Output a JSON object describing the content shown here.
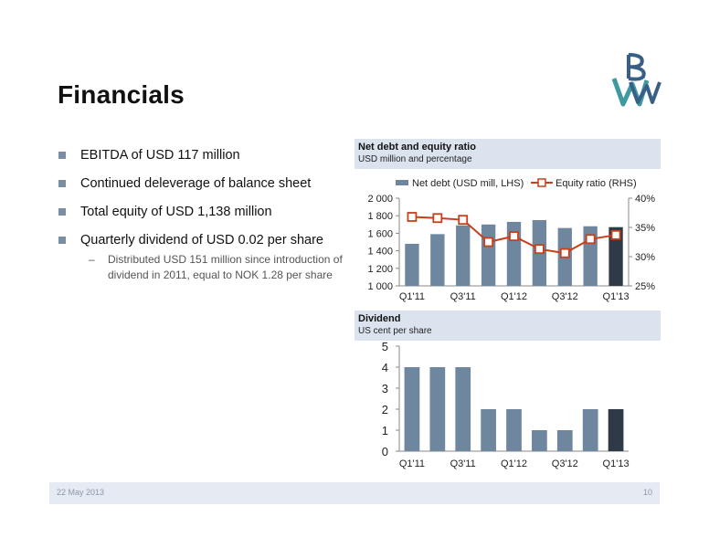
{
  "slide": {
    "title": "Financials",
    "footer_date": "22 May 2013",
    "page_number": "10"
  },
  "bullets": [
    {
      "text": "EBITDA of USD 117 million"
    },
    {
      "text": "Continued deleverage of balance sheet"
    },
    {
      "text": "Total equity of USD 1,138 million"
    },
    {
      "text": "Quarterly dividend of USD 0.02 per share"
    }
  ],
  "subbullet": {
    "dash": "–",
    "text": "Distributed USD 151 million since introduction of dividend in 2011, equal to NOK 1.28 per share"
  },
  "colors": {
    "bar": "#6f879e",
    "highlight_bar": "#2e3a48",
    "line": "#c8401a",
    "panel_bg": "#dbe3ee",
    "logo_blue": "#3a5f86",
    "logo_teal": "#3f9aa0"
  },
  "chart_data": [
    {
      "type": "bar",
      "title": "Net debt and equity ratio",
      "subtitle": "USD million and percentage",
      "categories": [
        "Q1'11",
        "Q2'11",
        "Q3'11",
        "Q4'11",
        "Q1'12",
        "Q2'12",
        "Q3'12",
        "Q4'12",
        "Q1'13"
      ],
      "x_tick_labels": [
        "Q1'11",
        "Q3'11",
        "Q1'12",
        "Q3'12",
        "Q1'13"
      ],
      "series": [
        {
          "name": "Net debt (USD mill, LHS)",
          "type": "bar",
          "axis": "left",
          "values": [
            1480,
            1590,
            1690,
            1700,
            1730,
            1750,
            1660,
            1680,
            1670
          ]
        },
        {
          "name": "Equity ratio (RHS)",
          "type": "line",
          "axis": "right",
          "values": [
            36.8,
            36.6,
            36.3,
            32.5,
            33.5,
            31.3,
            30.6,
            33.0,
            33.7
          ]
        }
      ],
      "y_left": {
        "min": 1000,
        "max": 2000,
        "ticks": [
          1000,
          1200,
          1400,
          1600,
          1800,
          2000
        ],
        "tick_labels": [
          "1 000",
          "1 200",
          "1 400",
          "1 600",
          "1 800",
          "2 000"
        ]
      },
      "y_right": {
        "min": 25,
        "max": 40,
        "ticks": [
          25,
          30,
          35,
          40
        ],
        "tick_labels": [
          "25%",
          "30%",
          "35%",
          "40%"
        ]
      },
      "highlight_last": true,
      "legend_position": "top",
      "grid": false
    },
    {
      "type": "bar",
      "title": "Dividend",
      "subtitle": "US cent per share",
      "categories": [
        "Q1'11",
        "Q2'11",
        "Q3'11",
        "Q4'11",
        "Q1'12",
        "Q2'12",
        "Q3'12",
        "Q4'12",
        "Q1'13"
      ],
      "x_tick_labels": [
        "Q1'11",
        "Q3'11",
        "Q1'12",
        "Q3'12",
        "Q1'13"
      ],
      "values": [
        4,
        4,
        4,
        2,
        2,
        1,
        1,
        2,
        2
      ],
      "ylim": [
        0,
        5
      ],
      "y_ticks": [
        0,
        1,
        2,
        3,
        4,
        5
      ],
      "highlight_last": true,
      "grid": false
    }
  ]
}
